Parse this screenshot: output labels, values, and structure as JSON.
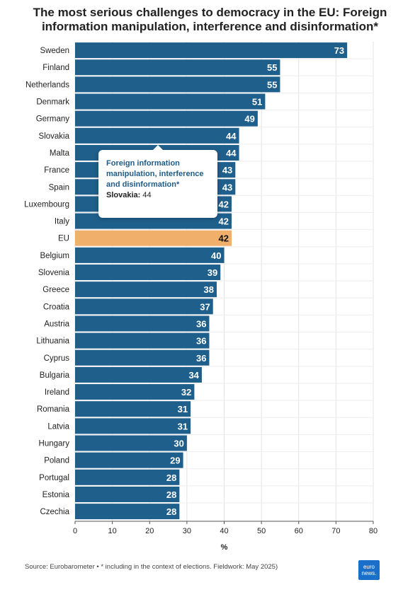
{
  "title_lines": [
    "The most serious challenges to democracy in the EU: Foreign",
    "information manipulation, interference and disinformation*"
  ],
  "chart_data": {
    "type": "bar",
    "orientation": "horizontal",
    "title": "The most serious challenges to democracy in the EU: Foreign information manipulation, interference and disinformation*",
    "xlabel": "%",
    "ylabel": "",
    "xlim": [
      0,
      80
    ],
    "x_ticks": [
      0,
      10,
      20,
      30,
      40,
      50,
      60,
      70,
      80
    ],
    "grid": true,
    "categories": [
      "Sweden",
      "Finland",
      "Netherlands",
      "Denmark",
      "Germany",
      "Slovakia",
      "Malta",
      "France",
      "Spain",
      "Luxembourg",
      "Italy",
      "EU",
      "Belgium",
      "Slovenia",
      "Greece",
      "Croatia",
      "Austria",
      "Lithuania",
      "Cyprus",
      "Bulgaria",
      "Ireland",
      "Romania",
      "Latvia",
      "Hungary",
      "Poland",
      "Portugal",
      "Estonia",
      "Czechia"
    ],
    "values": [
      73,
      55,
      55,
      51,
      49,
      44,
      44,
      43,
      43,
      42,
      42,
      42,
      40,
      39,
      38,
      37,
      36,
      36,
      36,
      34,
      32,
      31,
      31,
      30,
      29,
      28,
      28,
      28
    ],
    "highlight_category": "EU",
    "colors": {
      "bar": "#1f5f8b",
      "highlight": "#f0b06c"
    }
  },
  "tooltip": {
    "title": "Foreign information manipulation, interference and disinformation*",
    "category": "Slovakia:",
    "value": "44"
  },
  "source": "Source: Eurobarometer • * including in the context of elections. Fieldwork: May 2025)",
  "logo": {
    "line1": "euro",
    "line2": "news."
  }
}
